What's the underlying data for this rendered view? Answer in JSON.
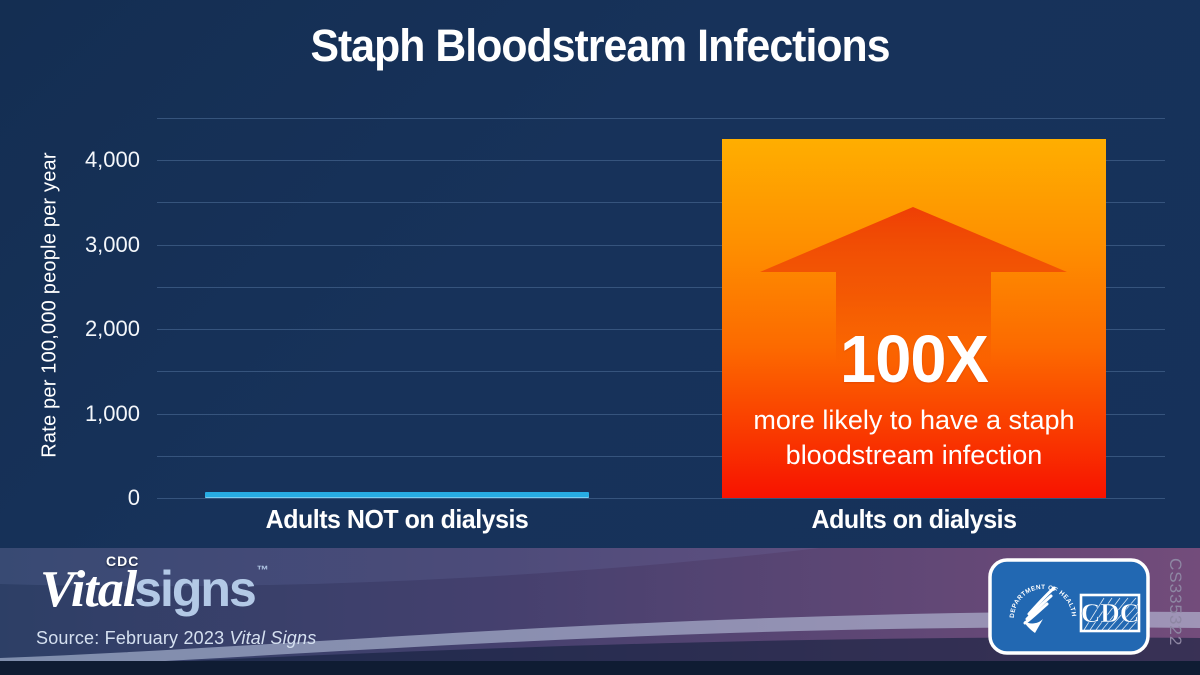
{
  "title": "Staph Bloodstream Infections",
  "chart_data": {
    "type": "bar",
    "categories": [
      "Adults NOT on dialysis",
      "Adults on dialysis"
    ],
    "values": [
      42,
      4250
    ],
    "series": [
      {
        "name": "Adults NOT on dialysis",
        "value": 42,
        "color": "#27ACE3"
      },
      {
        "name": "Adults on dialysis",
        "value": 4250,
        "color": "orange-red-gradient"
      }
    ],
    "title": "Staph Bloodstream Infections",
    "xlabel": "",
    "ylabel": "Rate per 100,000 people per year",
    "ylim": [
      0,
      4500
    ],
    "gridline_step": 500,
    "grid": true,
    "legend": false,
    "ytick_values": [
      0,
      1000,
      2000,
      3000,
      4000
    ],
    "ytick_labels": [
      "0",
      "1,000",
      "2,000",
      "3,000",
      "4,000"
    ],
    "annotation": {
      "headline": "100X",
      "lines": [
        "more likely to have a staph",
        "bloodstream infection"
      ],
      "applies_to": "Adults on dialysis"
    }
  },
  "colors": {
    "background": "#16335A",
    "gridline": "#41608A",
    "bar_cyan": "#27ACE3",
    "bar_gradient_top": "#FFAE00",
    "bar_gradient_bottom": "#F81200",
    "arrow": "#EE3A05",
    "text": "#FFFFFF",
    "signs_blue": "#B3C9E6",
    "badge_blue": "#2268B2"
  },
  "footer": {
    "logo": {
      "brand_prefix": "Vital",
      "brand_suffix": "signs",
      "cdc_small": "CDC",
      "trademark": "™"
    },
    "source_prefix": "Source: February 2023 ",
    "source_italic": "Vital Signs",
    "badge": {
      "cdc_label": "CDC",
      "hhs_circle_text": "DEPARTMENT OF HEALTH & HUMAN SERVICES • USA"
    },
    "doc_number": "CS335322"
  }
}
